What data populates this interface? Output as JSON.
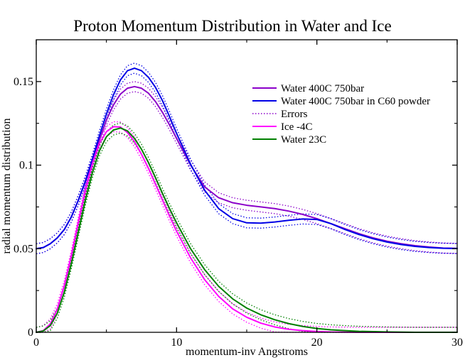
{
  "chart_data": {
    "type": "line",
    "title": "Proton Momentum Distribution in Water and Ice",
    "xlabel": "momentum-inv Angstroms",
    "ylabel": "radial momentum distribution",
    "xlim": [
      0,
      30
    ],
    "ylim": [
      0,
      0.175
    ],
    "xticks": [
      0,
      10,
      20,
      30
    ],
    "xtick_labels": [
      "0",
      "10",
      "20",
      "30"
    ],
    "yticks": [
      0,
      0.05,
      0.1,
      0.15
    ],
    "ytick_labels": [
      "0",
      "0.05",
      "0.1",
      "0.15"
    ],
    "grid": false,
    "legend_position": "top-right",
    "series": [
      {
        "name": "Water 400C 750bar",
        "color": "#8b00c9",
        "style": "solid",
        "x": [
          0,
          0.5,
          1,
          1.5,
          2,
          2.5,
          3,
          3.5,
          4,
          4.5,
          5,
          5.5,
          6,
          6.5,
          7,
          7.5,
          8,
          8.5,
          9,
          9.5,
          10,
          11,
          12,
          13,
          14,
          15,
          16,
          17,
          18,
          19,
          20,
          21,
          22,
          23,
          24,
          25,
          26,
          27,
          28,
          29,
          30
        ],
        "values": [
          0.05,
          0.0507,
          0.053,
          0.0565,
          0.0615,
          0.069,
          0.079,
          0.09,
          0.1025,
          0.115,
          0.127,
          0.136,
          0.1425,
          0.146,
          0.147,
          0.146,
          0.143,
          0.138,
          0.1315,
          0.124,
          0.116,
          0.1,
          0.087,
          0.0805,
          0.0775,
          0.076,
          0.075,
          0.074,
          0.0725,
          0.0705,
          0.068,
          0.065,
          0.062,
          0.059,
          0.0565,
          0.0545,
          0.053,
          0.0518,
          0.051,
          0.0504,
          0.0502
        ]
      },
      {
        "name": "Water 400C 750bar in C60 powder",
        "color": "#0000e6",
        "style": "solid",
        "x": [
          0,
          0.5,
          1,
          1.5,
          2,
          2.5,
          3,
          3.5,
          4,
          4.5,
          5,
          5.5,
          6,
          6.5,
          7,
          7.5,
          8,
          8.5,
          9,
          9.5,
          10,
          11,
          12,
          13,
          14,
          15,
          16,
          17,
          18,
          19,
          20,
          21,
          22,
          23,
          24,
          25,
          26,
          27,
          28,
          29,
          30
        ],
        "values": [
          0.05,
          0.0507,
          0.053,
          0.0565,
          0.0615,
          0.069,
          0.079,
          0.0905,
          0.1035,
          0.1175,
          0.1305,
          0.142,
          0.151,
          0.1565,
          0.158,
          0.1565,
          0.1525,
          0.1465,
          0.1385,
          0.129,
          0.119,
          0.1005,
          0.085,
          0.074,
          0.068,
          0.0655,
          0.0653,
          0.066,
          0.067,
          0.0678,
          0.0675,
          0.065,
          0.0615,
          0.0585,
          0.056,
          0.054,
          0.0525,
          0.0514,
          0.0507,
          0.0503,
          0.0501
        ]
      },
      {
        "name": "Ice -4C",
        "color": "#ff00ff",
        "style": "solid",
        "x": [
          0,
          0.5,
          1,
          1.5,
          2,
          2.5,
          3,
          3.5,
          4,
          4.5,
          5,
          5.5,
          6,
          6.5,
          7,
          7.5,
          8,
          8.5,
          9,
          9.5,
          10,
          11,
          12,
          13,
          14,
          15,
          16,
          17,
          18,
          19,
          20,
          21,
          22,
          23,
          24,
          25,
          26,
          27,
          28,
          29,
          30
        ],
        "values": [
          0,
          0.001,
          0.005,
          0.014,
          0.028,
          0.046,
          0.066,
          0.085,
          0.101,
          0.113,
          0.12,
          0.123,
          0.1228,
          0.1195,
          0.114,
          0.1065,
          0.098,
          0.0885,
          0.079,
          0.0695,
          0.0605,
          0.0445,
          0.0315,
          0.0215,
          0.014,
          0.009,
          0.0055,
          0.0032,
          0.0018,
          0.001,
          0.0005,
          0.0002,
          0.0001,
          0,
          0,
          0,
          0,
          0,
          0,
          0,
          0
        ]
      },
      {
        "name": "Water 23C",
        "color": "#008000",
        "style": "solid",
        "x": [
          0,
          0.5,
          1,
          1.5,
          2,
          2.5,
          3,
          3.5,
          4,
          4.5,
          5,
          5.5,
          6,
          6.5,
          7,
          7.5,
          8,
          8.5,
          9,
          9.5,
          10,
          11,
          12,
          13,
          14,
          15,
          16,
          17,
          18,
          19,
          20,
          21,
          22,
          23,
          24,
          25,
          26,
          27,
          28,
          29,
          30
        ],
        "values": [
          0,
          0.0008,
          0.004,
          0.0115,
          0.024,
          0.041,
          0.06,
          0.079,
          0.0955,
          0.1085,
          0.117,
          0.121,
          0.1222,
          0.1205,
          0.116,
          0.1095,
          0.1015,
          0.0925,
          0.083,
          0.074,
          0.0655,
          0.05,
          0.0375,
          0.0275,
          0.02,
          0.0145,
          0.0105,
          0.0075,
          0.0052,
          0.0035,
          0.0023,
          0.0015,
          0.001,
          0.0006,
          0.0004,
          0.0002,
          0.0001,
          0,
          0,
          0,
          0
        ]
      }
    ],
    "errors_legend": {
      "name": "Errors",
      "color": "#8b00c9",
      "style": "dotted",
      "band": 0.003
    }
  }
}
